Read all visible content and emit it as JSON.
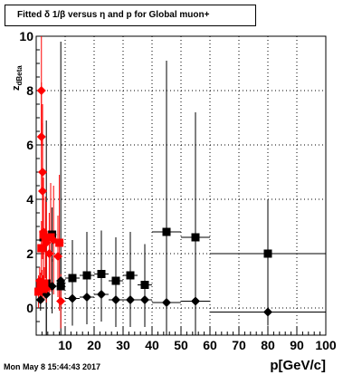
{
  "header": {
    "title": "Fitted δ 1/β versus η and p for Global muon+"
  },
  "footer": {
    "datetime": "Mon May  8 15:44:43 2017"
  },
  "chart_data": {
    "type": "scatter",
    "title": "Fitted δ 1/β versus η and p for Global muon+",
    "xlabel": "p[GeV/c]",
    "ylabel": "z_dBeta",
    "xlim": [
      0,
      100
    ],
    "ylim": [
      -1,
      10
    ],
    "x_ticks": [
      10,
      20,
      30,
      40,
      50,
      60,
      70,
      80,
      90,
      100
    ],
    "y_ticks": [
      0,
      2,
      4,
      6,
      8,
      10
    ],
    "grid": true,
    "series": [
      {
        "marker": "square",
        "color": "#000000",
        "points": [
          {
            "x": 1.5,
            "y": 0.7,
            "xerr": 1.0,
            "yerr": 0.5
          },
          {
            "x": 2.5,
            "y": 2.6,
            "xerr": 0.5,
            "yerr": 0.5
          },
          {
            "x": 3.5,
            "y": 0.9,
            "xerr": 0.5,
            "yerr": 6.0
          },
          {
            "x": 5.5,
            "y": 2.7,
            "xerr": 1.5,
            "yerr": 1.0
          },
          {
            "x": 8.5,
            "y": 0.8,
            "xerr": 1.5,
            "yerr": 9.0
          },
          {
            "x": 12.5,
            "y": 1.1,
            "xerr": 2.5,
            "yerr": 1.4
          },
          {
            "x": 17.5,
            "y": 1.2,
            "xerr": 2.5,
            "yerr": 1.6
          },
          {
            "x": 22.5,
            "y": 1.25,
            "xerr": 2.5,
            "yerr": 1.6
          },
          {
            "x": 27.5,
            "y": 1.0,
            "xerr": 2.5,
            "yerr": 1.6
          },
          {
            "x": 32.5,
            "y": 1.2,
            "xerr": 2.5,
            "yerr": 1.6
          },
          {
            "x": 37.5,
            "y": 0.85,
            "xerr": 2.5,
            "yerr": 1.5
          },
          {
            "x": 45,
            "y": 2.8,
            "xerr": 5,
            "yerr": 6.3
          },
          {
            "x": 55,
            "y": 2.6,
            "xerr": 5,
            "yerr": 4.6
          },
          {
            "x": 80,
            "y": 2.0,
            "xerr": 20,
            "yerr": 2.0
          }
        ]
      },
      {
        "marker": "diamond",
        "color": "#000000",
        "points": [
          {
            "x": 1.5,
            "y": 0.3,
            "xerr": 1.0,
            "yerr": 0.4
          },
          {
            "x": 3.5,
            "y": 0.5,
            "xerr": 0.5,
            "yerr": 2.0
          },
          {
            "x": 5.5,
            "y": 0.8,
            "xerr": 1.5,
            "yerr": 1.0
          },
          {
            "x": 8.5,
            "y": 1.0,
            "xerr": 1.5,
            "yerr": 1.0
          },
          {
            "x": 12.5,
            "y": 0.35,
            "xerr": 2.5,
            "yerr": 1.0
          },
          {
            "x": 17.5,
            "y": 0.4,
            "xerr": 2.5,
            "yerr": 1.0
          },
          {
            "x": 22.5,
            "y": 0.5,
            "xerr": 2.5,
            "yerr": 1.0
          },
          {
            "x": 27.5,
            "y": 0.3,
            "xerr": 2.5,
            "yerr": 1.0
          },
          {
            "x": 32.5,
            "y": 0.3,
            "xerr": 2.5,
            "yerr": 1.0
          },
          {
            "x": 37.5,
            "y": 0.3,
            "xerr": 2.5,
            "yerr": 1.0
          },
          {
            "x": 45,
            "y": 0.2,
            "xerr": 5,
            "yerr": 1.2
          },
          {
            "x": 55,
            "y": 0.25,
            "xerr": 5,
            "yerr": 1.2
          },
          {
            "x": 80,
            "y": -0.15,
            "xerr": 20,
            "yerr": 0.5
          }
        ]
      },
      {
        "marker": "square",
        "color": "#ff0000",
        "points": [
          {
            "x": 0.8,
            "y": 0.6,
            "xerr": 0.4,
            "yerr": 0.6
          },
          {
            "x": 1.5,
            "y": 0.8,
            "xerr": 0.5,
            "yerr": 0.5
          },
          {
            "x": 2.2,
            "y": 0.7,
            "xerr": 0.5,
            "yerr": 0.5
          },
          {
            "x": 2.8,
            "y": 0.9,
            "xerr": 0.5,
            "yerr": 0.6
          },
          {
            "x": 1.8,
            "y": 2.2,
            "xerr": 0.4,
            "yerr": 1.0
          },
          {
            "x": 2.5,
            "y": 2.7,
            "xerr": 0.4,
            "yerr": 1.5
          },
          {
            "x": 3.2,
            "y": 2.6,
            "xerr": 0.4,
            "yerr": 1.5
          },
          {
            "x": 5.0,
            "y": 2.6,
            "xerr": 1.0,
            "yerr": 2.0
          },
          {
            "x": 8.0,
            "y": 2.4,
            "xerr": 1.5,
            "yerr": 2.5
          }
        ]
      },
      {
        "marker": "diamond",
        "color": "#ff0000",
        "points": [
          {
            "x": 1.8,
            "y": 8.0,
            "xerr": 0.3,
            "yerr": 2.0
          },
          {
            "x": 1.8,
            "y": 6.3,
            "xerr": 0.3,
            "yerr": 2.0
          },
          {
            "x": 2.2,
            "y": 5.0,
            "xerr": 0.3,
            "yerr": 2.5
          },
          {
            "x": 2.2,
            "y": 4.3,
            "xerr": 0.3,
            "yerr": 2.5
          },
          {
            "x": 2.5,
            "y": 2.8,
            "xerr": 0.3,
            "yerr": 2.0
          },
          {
            "x": 3.5,
            "y": 2.4,
            "xerr": 0.5,
            "yerr": 1.5
          },
          {
            "x": 4.5,
            "y": 2.0,
            "xerr": 0.5,
            "yerr": 1.5
          },
          {
            "x": 6.0,
            "y": 2.5,
            "xerr": 1.0,
            "yerr": 2.0
          },
          {
            "x": 7.5,
            "y": 1.9,
            "xerr": 0.5,
            "yerr": 1.5
          },
          {
            "x": 1.2,
            "y": 1.0,
            "xerr": 0.3,
            "yerr": 0.5
          },
          {
            "x": 2.0,
            "y": 0.9,
            "xerr": 0.3,
            "yerr": 0.5
          },
          {
            "x": 3.5,
            "y": 0.7,
            "xerr": 0.3,
            "yerr": 0.5
          },
          {
            "x": 8.5,
            "y": 0.25,
            "xerr": 1.5,
            "yerr": 1.0
          }
        ]
      }
    ]
  }
}
